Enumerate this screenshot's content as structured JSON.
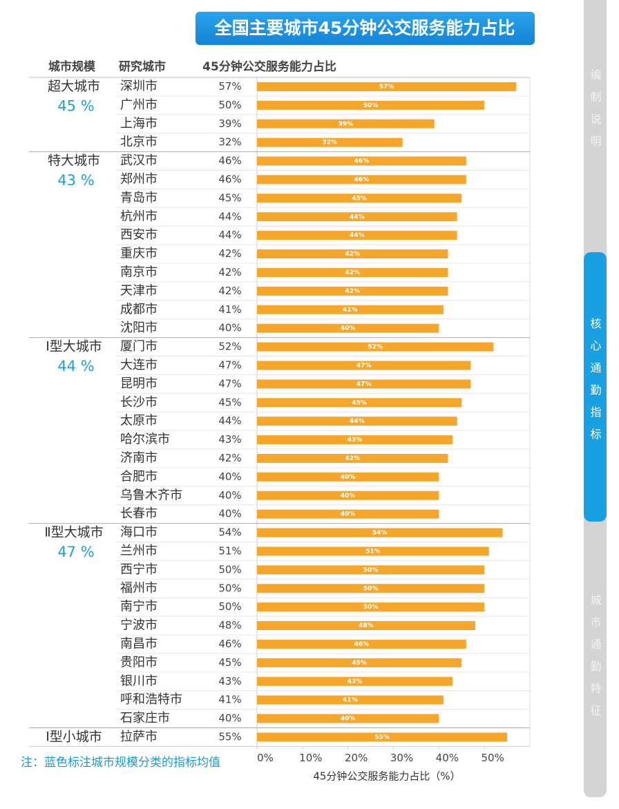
{
  "chart_data": {
    "type": "bar",
    "orientation": "horizontal",
    "title": "全国主要城市45分钟公交服务能力占比",
    "column_headers": [
      "城市规模",
      "研究城市",
      "45分钟公交服务能力占比"
    ],
    "xlabel": "45分钟公交服务能力占比（%）",
    "note": "注：蓝色标注城市规模分类的指标均值",
    "color": "#f5a62b",
    "xlim": [
      0,
      60
    ],
    "xticks": [
      {
        "value": 0,
        "label": "0%"
      },
      {
        "value": 10,
        "label": "10%"
      },
      {
        "value": 20,
        "label": "20%"
      },
      {
        "value": 30,
        "label": "30%"
      },
      {
        "value": 40,
        "label": "40%"
      },
      {
        "value": 50,
        "label": "50%"
      }
    ],
    "grid": false,
    "groups": [
      {
        "name": "超大城市",
        "average": {
          "value": 45,
          "label": "45 %"
        },
        "categories": [
          "深圳市",
          "广州市",
          "上海市",
          "北京市"
        ],
        "values": [
          57,
          50,
          39,
          32
        ],
        "value_labels": [
          "57%",
          "50%",
          "39%",
          "32%"
        ]
      },
      {
        "name": "特大城市",
        "average": {
          "value": 43,
          "label": "43 %"
        },
        "categories": [
          "武汉市",
          "郑州市",
          "青岛市",
          "杭州市",
          "西安市",
          "重庆市",
          "南京市",
          "天津市",
          "成都市",
          "沈阳市"
        ],
        "values": [
          46,
          46,
          45,
          44,
          44,
          42,
          42,
          42,
          41,
          40
        ],
        "value_labels": [
          "46%",
          "46%",
          "45%",
          "44%",
          "44%",
          "42%",
          "42%",
          "42%",
          "41%",
          "40%"
        ]
      },
      {
        "name": "Ⅰ型大城市",
        "average": {
          "value": 44,
          "label": "44 %"
        },
        "categories": [
          "厦门市",
          "大连市",
          "昆明市",
          "长沙市",
          "太原市",
          "哈尔滨市",
          "济南市",
          "合肥市",
          "乌鲁木齐市",
          "长春市"
        ],
        "values": [
          52,
          47,
          47,
          45,
          44,
          43,
          42,
          40,
          40,
          40
        ],
        "value_labels": [
          "52%",
          "47%",
          "47%",
          "45%",
          "44%",
          "43%",
          "42%",
          "40%",
          "40%",
          "40%"
        ]
      },
      {
        "name": "Ⅱ型大城市",
        "average": {
          "value": 47,
          "label": "47 %"
        },
        "categories": [
          "海口市",
          "兰州市",
          "西宁市",
          "福州市",
          "南宁市",
          "宁波市",
          "南昌市",
          "贵阳市",
          "银川市",
          "呼和浩特市",
          "石家庄市"
        ],
        "values": [
          54,
          51,
          50,
          50,
          50,
          48,
          46,
          45,
          43,
          41,
          40
        ],
        "value_labels": [
          "54%",
          "51%",
          "50%",
          "50%",
          "50%",
          "48%",
          "46%",
          "45%",
          "43%",
          "41%",
          "40%"
        ]
      },
      {
        "name": "Ⅰ型小城市",
        "categories": [
          "拉萨市"
        ],
        "values": [
          55
        ],
        "value_labels": [
          "55%"
        ]
      }
    ]
  },
  "sidebar": {
    "tabs": [
      "编制说明",
      "核心通勤指标",
      "城市通勤特征"
    ],
    "active": 1
  }
}
